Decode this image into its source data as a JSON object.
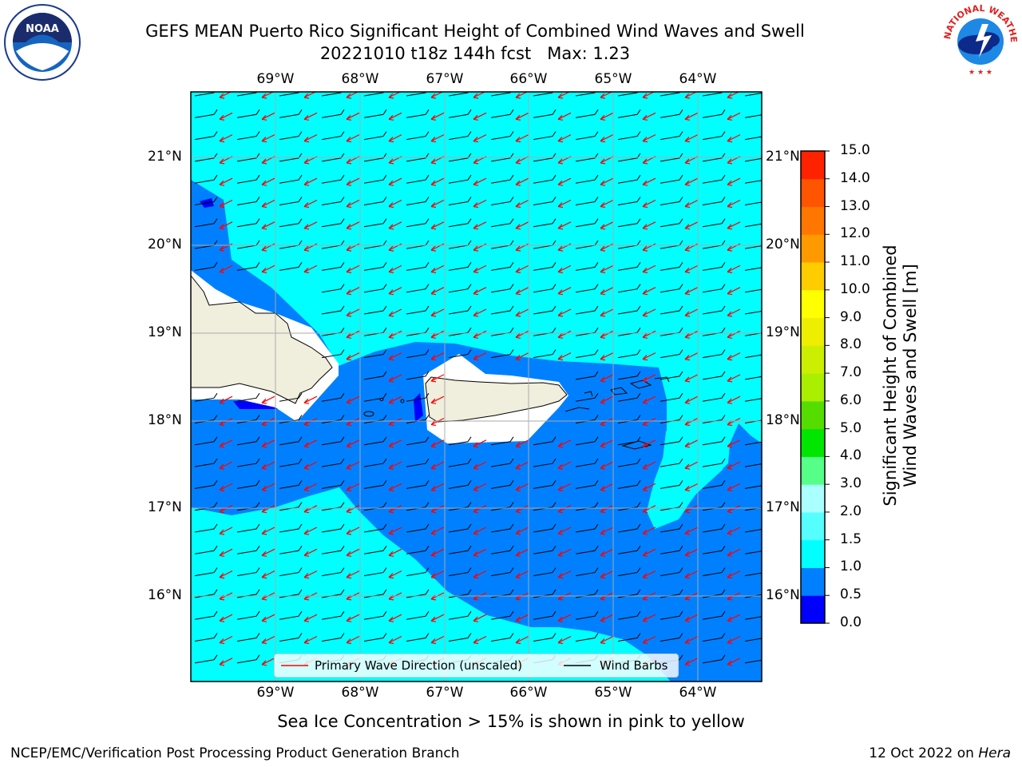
{
  "title": {
    "line1": "GEFS MEAN Puerto Rico Significant Height of Combined Wind Waves and Swell",
    "line2": "20221010 t18z 144h fcst   Max: 1.23"
  },
  "logos": {
    "left": "noaa-logo",
    "left_text": "NOAA",
    "right": "nws-logo",
    "right_text": "NATIONAL WEATHER SERVICE"
  },
  "map": {
    "lon_ticks": [
      "69°W",
      "68°W",
      "67°W",
      "66°W",
      "65°W",
      "64°W"
    ],
    "lat_ticks": [
      "21°N",
      "20°N",
      "19°N",
      "18°N",
      "17°N",
      "16°N"
    ],
    "colors": {
      "land": "#f0eedc",
      "light_sea": "#00ffff",
      "mid_sea": "#0080ff",
      "dark_sea": "#0000ff",
      "arrows": "#ff0000",
      "barbs": "#000000"
    }
  },
  "legend": {
    "wave_dir": "Primary Wave Direction (unscaled)",
    "wind_barbs": "Wind Barbs"
  },
  "colorbar": {
    "title": "Significant Height of Combined Wind Waves and Swell [m]",
    "title_line1": "Significant Height of Combined",
    "title_line2": "Wind Waves and Swell [m]",
    "ticks": [
      "0.0",
      "0.5",
      "1.0",
      "1.5",
      "2.0",
      "3.0",
      "4.0",
      "5.0",
      "6.0",
      "7.0",
      "8.0",
      "9.0",
      "10.0",
      "11.0",
      "12.0",
      "13.0",
      "14.0",
      "15.0"
    ],
    "colors": [
      "#0000ff",
      "#0080ff",
      "#00ffff",
      "#55ffff",
      "#aaffff",
      "#55ff88",
      "#00e600",
      "#55dd00",
      "#aaee00",
      "#ccee00",
      "#eeee00",
      "#ffff00",
      "#ffcc00",
      "#ff9900",
      "#ff7700",
      "#ff5500",
      "#ff2200"
    ]
  },
  "sea_ice_note": "Sea Ice Concentration > 15% is shown in pink to yellow",
  "footer": {
    "left": "NCEP/EMC/Verification Post Processing Product Generation Branch",
    "right_prefix": "12 Oct 2022 on ",
    "right_host": "Hera"
  }
}
